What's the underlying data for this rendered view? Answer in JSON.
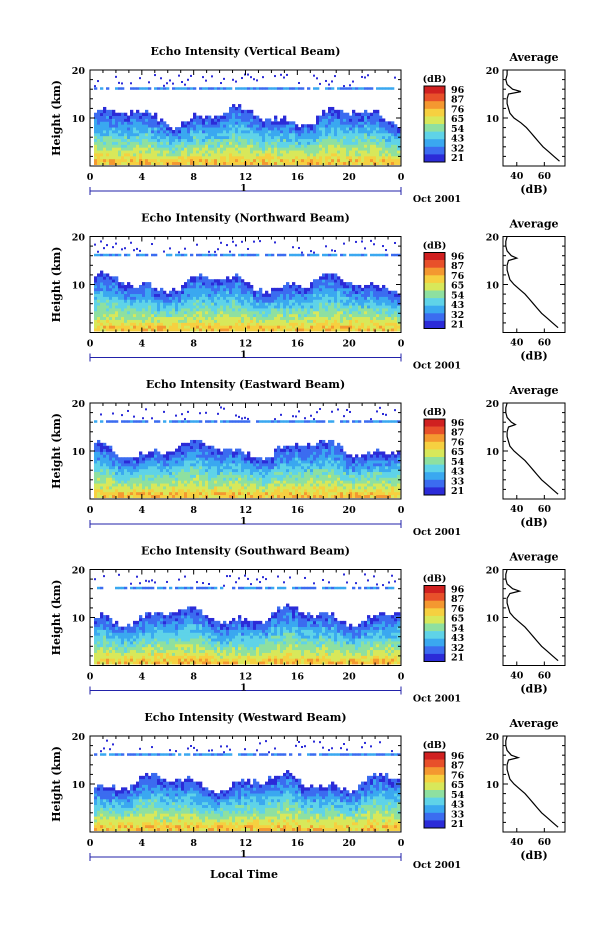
{
  "colorbar_unit": "(dB)",
  "colorbar_ticks": [
    "96",
    "87",
    "76",
    "65",
    "54",
    "43",
    "32",
    "21"
  ],
  "colorbar_ticks_panel3": [
    "96",
    "87",
    "76",
    "65",
    "54",
    "43",
    "33",
    "21"
  ],
  "colorbar_ticks_panel5": [
    "96",
    "87",
    "76",
    "65",
    "54",
    "43",
    "33",
    "21"
  ],
  "date_label": "Oct 2001",
  "xlabel": "Local Time",
  "profile_title": "Average",
  "profile_xlabel": "(dB)",
  "ylabel": "Height (km)",
  "day_marker": "1",
  "colors": {
    "scale": [
      "#2b2bd8",
      "#3b6cf0",
      "#3aa8f0",
      "#5fd3e8",
      "#8ee0a0",
      "#d8e85a",
      "#f6d040",
      "#f49830",
      "#e8502a",
      "#d02020"
    ]
  },
  "chart_data": [
    {
      "type": "heatmap",
      "title": "Echo Intensity (Vertical Beam)",
      "ylabel": "Height (km)",
      "xlim": [
        0,
        24
      ],
      "ylim": [
        0,
        20
      ],
      "xticks": [
        "0",
        "4",
        "8",
        "12",
        "16",
        "20",
        "0"
      ],
      "yticks": [
        "10",
        "20"
      ],
      "z_range_db": [
        21,
        96
      ],
      "profile": {
        "title": "Average",
        "xlabel": "(dB)",
        "xticks": [
          "40",
          "60"
        ],
        "height_km": [
          1,
          2,
          3,
          4,
          5,
          6,
          7,
          8,
          9,
          10,
          11,
          12,
          13,
          14,
          15,
          15.5,
          16,
          17,
          18,
          19,
          20
        ],
        "db": [
          71,
          67,
          63,
          59,
          56,
          53,
          50,
          47,
          43,
          38,
          35,
          34,
          33,
          33,
          34,
          43,
          37,
          33,
          32,
          33,
          33
        ]
      }
    },
    {
      "type": "heatmap",
      "title": "Echo Intensity (Northward Beam)",
      "ylabel": "Height (km)",
      "xlim": [
        0,
        24
      ],
      "ylim": [
        0,
        20
      ],
      "xticks": [
        "0",
        "4",
        "8",
        "12",
        "16",
        "20",
        "0"
      ],
      "yticks": [
        "10",
        "20"
      ],
      "z_range_db": [
        21,
        96
      ],
      "profile": {
        "title": "Average",
        "xlabel": "(dB)",
        "xticks": [
          "40",
          "60"
        ],
        "height_km": [
          1,
          2,
          3,
          4,
          5,
          6,
          7,
          8,
          9,
          10,
          11,
          12,
          13,
          14,
          15,
          15.5,
          16,
          17,
          18,
          19,
          20
        ],
        "db": [
          70,
          66,
          62,
          58,
          55,
          52,
          49,
          46,
          42,
          38,
          35,
          34,
          33,
          33,
          34,
          40,
          36,
          33,
          32,
          32,
          33
        ]
      }
    },
    {
      "type": "heatmap",
      "title": "Echo Intensity (Eastward Beam)",
      "ylabel": "Height (km)",
      "xlim": [
        0,
        24
      ],
      "ylim": [
        0,
        20
      ],
      "xticks": [
        "0",
        "4",
        "8",
        "12",
        "16",
        "20",
        "0"
      ],
      "yticks": [
        "10",
        "20"
      ],
      "z_range_db": [
        21,
        96
      ],
      "profile": {
        "title": "Average",
        "xlabel": "(dB)",
        "xticks": [
          "40",
          "60"
        ],
        "height_km": [
          1,
          2,
          3,
          4,
          5,
          6,
          7,
          8,
          9,
          10,
          11,
          12,
          13,
          14,
          15,
          15.5,
          16,
          17,
          18,
          19,
          20
        ],
        "db": [
          70,
          66,
          62,
          58,
          55,
          52,
          49,
          46,
          42,
          38,
          35,
          34,
          33,
          33,
          34,
          39,
          36,
          33,
          32,
          32,
          33
        ]
      }
    },
    {
      "type": "heatmap",
      "title": "Echo Intensity (Southward Beam)",
      "ylabel": "Height (km)",
      "xlim": [
        0,
        24
      ],
      "ylim": [
        0,
        20
      ],
      "xticks": [
        "0",
        "4",
        "8",
        "12",
        "16",
        "20",
        "0"
      ],
      "yticks": [
        "10",
        "20"
      ],
      "z_range_db": [
        21,
        96
      ],
      "profile": {
        "title": "Average",
        "xlabel": "(dB)",
        "xticks": [
          "40",
          "60"
        ],
        "height_km": [
          1,
          2,
          3,
          4,
          5,
          6,
          7,
          8,
          9,
          10,
          11,
          12,
          13,
          14,
          15,
          15.5,
          16,
          17,
          18,
          19,
          20
        ],
        "db": [
          70,
          66,
          62,
          58,
          55,
          52,
          49,
          46,
          42,
          38,
          35,
          34,
          33,
          33,
          35,
          42,
          37,
          33,
          32,
          32,
          33
        ]
      }
    },
    {
      "type": "heatmap",
      "title": "Echo Intensity (Westward Beam)",
      "ylabel": "Height (km)",
      "xlim": [
        0,
        24
      ],
      "ylim": [
        0,
        20
      ],
      "xticks": [
        "0",
        "4",
        "8",
        "12",
        "16",
        "20",
        "0"
      ],
      "yticks": [
        "10",
        "20"
      ],
      "z_range_db": [
        21,
        96
      ],
      "profile": {
        "title": "Average",
        "xlabel": "(dB)",
        "xticks": [
          "40",
          "60"
        ],
        "height_km": [
          1,
          2,
          3,
          4,
          5,
          6,
          7,
          8,
          9,
          10,
          11,
          12,
          13,
          14,
          15,
          15.5,
          16,
          17,
          18,
          19,
          20
        ],
        "db": [
          70,
          66,
          62,
          58,
          55,
          52,
          49,
          46,
          42,
          38,
          35,
          34,
          33,
          33,
          34,
          41,
          36,
          33,
          32,
          32,
          33
        ]
      }
    }
  ]
}
